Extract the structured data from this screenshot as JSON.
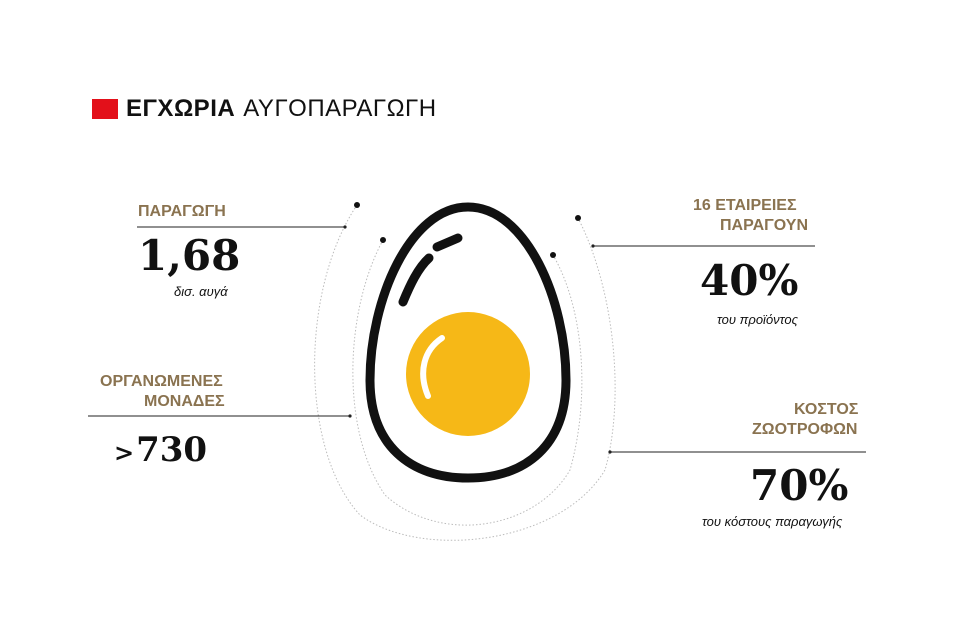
{
  "title": {
    "bold": "ΕΓΧΩΡΙΑ",
    "light": "ΑΥΓΟΠΑΡΑΓΩΓΗ"
  },
  "stats": {
    "production": {
      "label": "ΠΑΡΑΓΩΓΗ",
      "value": "1,68",
      "note": "δισ. αυγά"
    },
    "units": {
      "label_line1": "ΟΡΓΑΝΩΜΕΝΕΣ",
      "label_line2": "ΜΟΝΑΔΕΣ",
      "value_prefix": ">",
      "value": "730"
    },
    "companies": {
      "label_line1": "16 ΕΤΑΙΡΕΙΕΣ",
      "label_line2": "ΠΑΡΑΓΟΥΝ",
      "value": "40%",
      "note": "του προϊόντος"
    },
    "feed": {
      "label_line1": "ΚΟΣΤΟΣ",
      "label_line2": "ΖΩΟΤΡΟΦΩΝ",
      "value": "70%",
      "note": "του κόστους παραγωγής"
    }
  },
  "colors": {
    "accent": "#e3101a",
    "label": "#8a7350",
    "yolk": "#f6b817",
    "outline": "#111111"
  }
}
